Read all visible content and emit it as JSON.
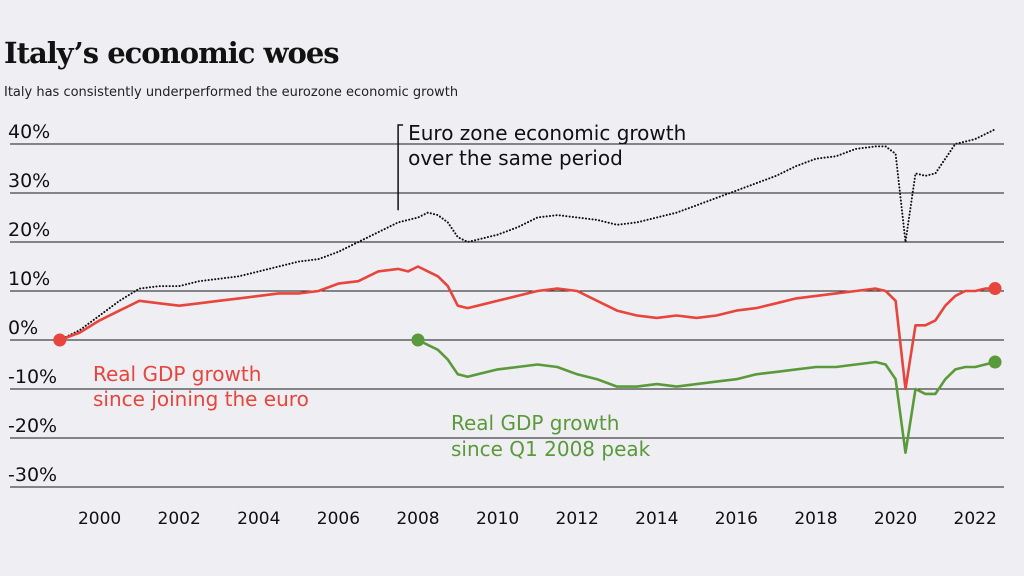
{
  "chart_data": {
    "type": "line",
    "title": "Italy’s economic woes",
    "subtitle": "Italy has consistently underperformed the eurozone economic growth",
    "ylim": [
      -30,
      40
    ],
    "xlim": [
      1998.0,
      2022.75
    ],
    "y_ticks": [
      40,
      30,
      20,
      10,
      0,
      -10,
      -20,
      -30
    ],
    "y_tick_labels": [
      "40%",
      "30%",
      "20%",
      "10%",
      "0%",
      "-10%",
      "-20%",
      "-30%"
    ],
    "x_ticks": [
      2000,
      2002,
      2004,
      2006,
      2008,
      2010,
      2012,
      2014,
      2016,
      2018,
      2020,
      2022
    ],
    "x_tick_labels": [
      "2000",
      "2002",
      "2004",
      "2006",
      "2008",
      "2010",
      "2012",
      "2014",
      "2016",
      "2018",
      "2020",
      "2022"
    ],
    "grid": "horizontal",
    "series": [
      {
        "name": "Euro zone economic growth over the same period",
        "style": "dotted",
        "color": "#111111",
        "x": [
          1999.0,
          1999.5,
          2000.0,
          2000.5,
          2001.0,
          2001.5,
          2002.0,
          2002.5,
          2003.0,
          2003.5,
          2004.0,
          2004.5,
          2005.0,
          2005.5,
          2006.0,
          2006.5,
          2007.0,
          2007.5,
          2008.0,
          2008.25,
          2008.5,
          2008.75,
          2009.0,
          2009.25,
          2009.5,
          2010.0,
          2010.5,
          2011.0,
          2011.5,
          2012.0,
          2012.5,
          2013.0,
          2013.5,
          2014.0,
          2014.5,
          2015.0,
          2015.5,
          2016.0,
          2016.5,
          2017.0,
          2017.5,
          2018.0,
          2018.5,
          2019.0,
          2019.5,
          2019.75,
          2020.0,
          2020.25,
          2020.5,
          2020.75,
          2021.0,
          2021.25,
          2021.5,
          2021.75,
          2022.0,
          2022.25,
          2022.5
        ],
        "y": [
          0,
          2,
          5,
          8,
          10.5,
          11,
          11,
          12,
          12.5,
          13,
          14,
          15,
          16,
          16.5,
          18,
          20,
          22,
          24,
          25,
          26,
          25.5,
          24,
          21,
          20,
          20.5,
          21.5,
          23,
          25,
          25.5,
          25,
          24.5,
          23.5,
          24,
          25,
          26,
          27.5,
          29,
          30.5,
          32,
          33.5,
          35.5,
          37,
          37.5,
          39,
          39.5,
          39.5,
          38,
          20,
          34,
          33.5,
          34,
          37,
          40,
          40.5,
          41,
          42,
          43
        ]
      },
      {
        "name": "Real GDP growth since joining the euro",
        "style": "solid",
        "color": "#e8453c",
        "x": [
          1999.0,
          1999.5,
          2000.0,
          2000.5,
          2001.0,
          2001.5,
          2002.0,
          2002.5,
          2003.0,
          2003.5,
          2004.0,
          2004.5,
          2005.0,
          2005.5,
          2006.0,
          2006.5,
          2007.0,
          2007.5,
          2007.75,
          2008.0,
          2008.25,
          2008.5,
          2008.75,
          2009.0,
          2009.25,
          2009.5,
          2010.0,
          2010.5,
          2011.0,
          2011.5,
          2012.0,
          2012.5,
          2013.0,
          2013.5,
          2014.0,
          2014.5,
          2015.0,
          2015.5,
          2016.0,
          2016.5,
          2017.0,
          2017.5,
          2018.0,
          2018.5,
          2019.0,
          2019.5,
          2019.75,
          2020.0,
          2020.25,
          2020.5,
          2020.75,
          2021.0,
          2021.25,
          2021.5,
          2021.75,
          2022.0,
          2022.25,
          2022.5
        ],
        "y": [
          0,
          1.5,
          4,
          6,
          8,
          7.5,
          7,
          7.5,
          8,
          8.5,
          9,
          9.5,
          9.5,
          10,
          11.5,
          12,
          14,
          14.5,
          14,
          15,
          14,
          13,
          11,
          7,
          6.5,
          7,
          8,
          9,
          10,
          10.5,
          10,
          8,
          6,
          5,
          4.5,
          5,
          4.5,
          5,
          6,
          6.5,
          7.5,
          8.5,
          9,
          9.5,
          10,
          10.5,
          10,
          8,
          -10,
          3,
          3,
          4,
          7,
          9,
          10,
          10,
          10.5,
          10.5
        ]
      },
      {
        "name": "Real GDP growth since Q1 2008 peak",
        "style": "solid",
        "color": "#5a9a3a",
        "x": [
          2008.0,
          2008.25,
          2008.5,
          2008.75,
          2009.0,
          2009.25,
          2009.5,
          2010.0,
          2010.5,
          2011.0,
          2011.5,
          2012.0,
          2012.5,
          2013.0,
          2013.5,
          2014.0,
          2014.5,
          2015.0,
          2015.5,
          2016.0,
          2016.5,
          2017.0,
          2017.5,
          2018.0,
          2018.5,
          2019.0,
          2019.5,
          2019.75,
          2020.0,
          2020.25,
          2020.5,
          2020.75,
          2021.0,
          2021.25,
          2021.5,
          2021.75,
          2022.0,
          2022.25,
          2022.5
        ],
        "y": [
          0,
          -1,
          -2,
          -4,
          -7,
          -7.5,
          -7,
          -6,
          -5.5,
          -5,
          -5.5,
          -7,
          -8,
          -9.5,
          -9.5,
          -9,
          -9.5,
          -9,
          -8.5,
          -8,
          -7,
          -6.5,
          -6,
          -5.5,
          -5.5,
          -5,
          -4.5,
          -5,
          -8,
          -23,
          -10,
          -11,
          -11,
          -8,
          -6,
          -5.5,
          -5.5,
          -5,
          -4.5
        ]
      }
    ],
    "annotations": {
      "eurozone_line1": "Euro zone economic growth",
      "eurozone_line2": "over the same period",
      "red_line1": "Real GDP growth",
      "red_line2": "since joining the euro",
      "green_line1": "Real GDP growth",
      "green_line2": "since Q1 2008 peak"
    }
  }
}
